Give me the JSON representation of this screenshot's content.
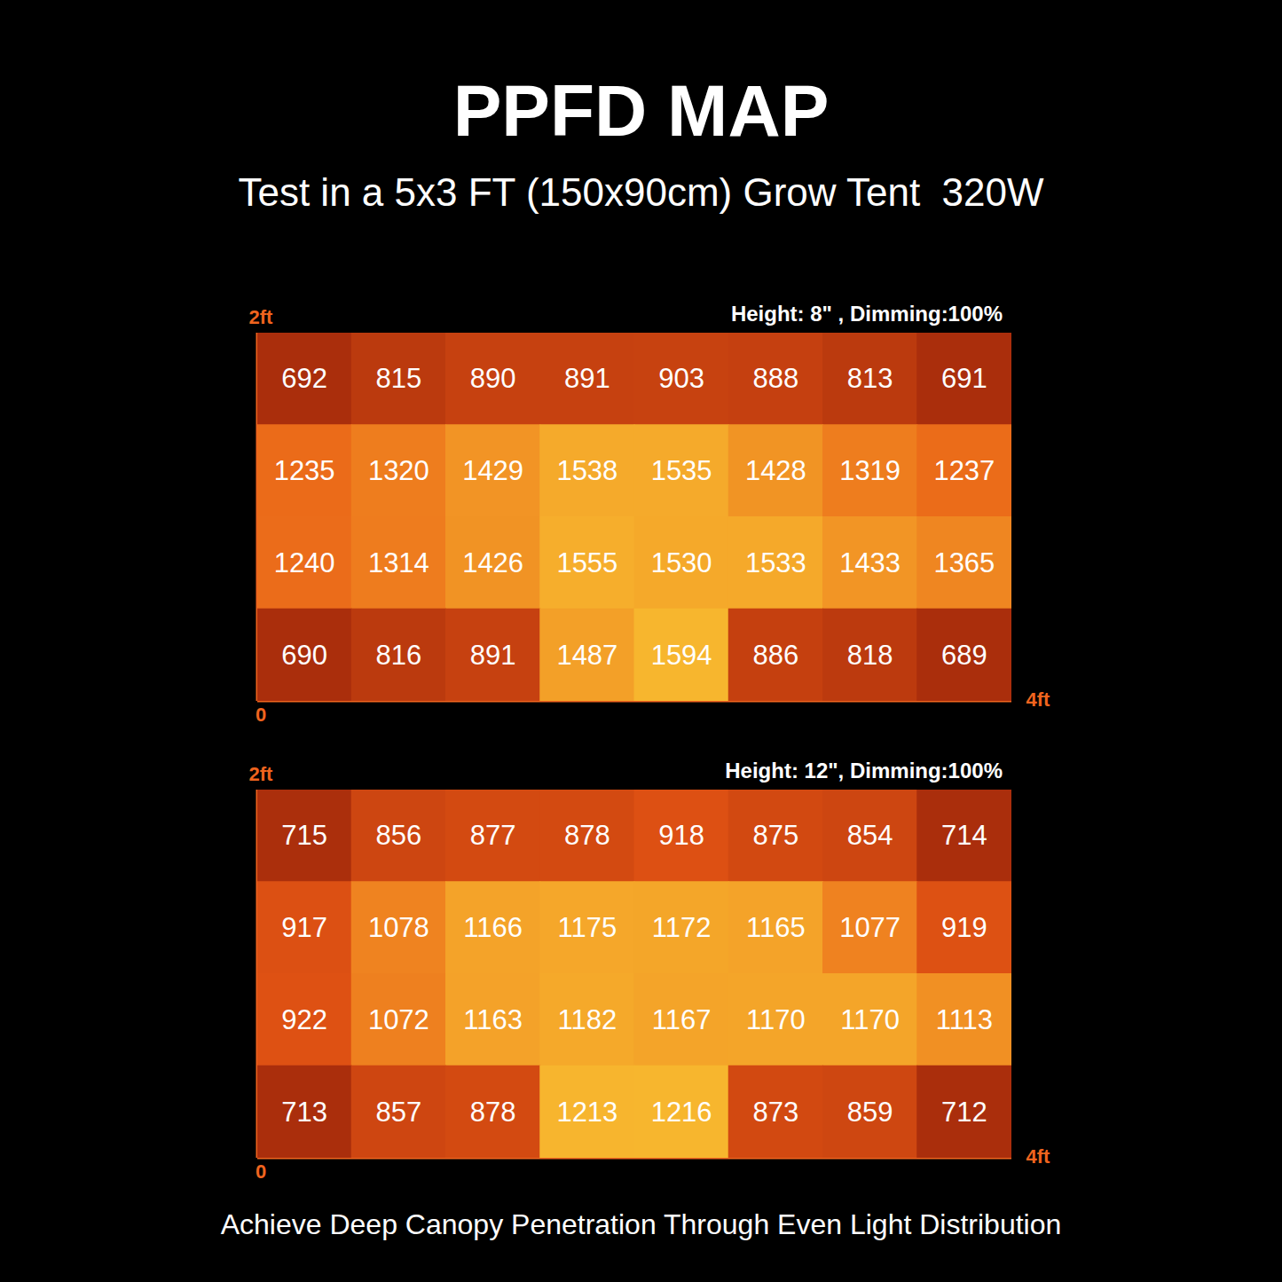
{
  "title": "PPFD MAP",
  "subtitle": "Test in a 5x3 FT (150x90cm) Grow Tent  320W",
  "footer": "Achieve Deep Canopy Penetration Through Even Light Distribution",
  "chart_data": [
    {
      "type": "heatmap",
      "title": "Height: 8\" , Dimming:100%",
      "xlim": [
        0,
        4
      ],
      "ylim": [
        0,
        2
      ],
      "xticks": [
        {
          "value": 4,
          "label": "4ft"
        }
      ],
      "yticks": [
        {
          "value": 0,
          "label": "0"
        },
        {
          "value": 2,
          "label": "2ft"
        }
      ],
      "values": [
        [
          692,
          815,
          890,
          891,
          903,
          888,
          813,
          691
        ],
        [
          1235,
          1320,
          1429,
          1538,
          1535,
          1428,
          1319,
          1237
        ],
        [
          1240,
          1314,
          1426,
          1555,
          1530,
          1533,
          1433,
          1365
        ],
        [
          690,
          816,
          891,
          1487,
          1594,
          886,
          818,
          689
        ]
      ],
      "data_labels": true
    },
    {
      "type": "heatmap",
      "title": "Height: 12\", Dimming:100%",
      "xlim": [
        0,
        4
      ],
      "ylim": [
        0,
        2
      ],
      "xticks": [
        {
          "value": 4,
          "label": "4ft"
        }
      ],
      "yticks": [
        {
          "value": 0,
          "label": "0"
        },
        {
          "value": 2,
          "label": "2ft"
        }
      ],
      "values": [
        [
          715,
          856,
          877,
          878,
          918,
          875,
          854,
          714
        ],
        [
          917,
          1078,
          1166,
          1175,
          1172,
          1165,
          1077,
          919
        ],
        [
          922,
          1072,
          1163,
          1182,
          1167,
          1170,
          1170,
          1113
        ],
        [
          713,
          857,
          878,
          1213,
          1216,
          873,
          859,
          712
        ]
      ],
      "data_labels": true
    }
  ]
}
